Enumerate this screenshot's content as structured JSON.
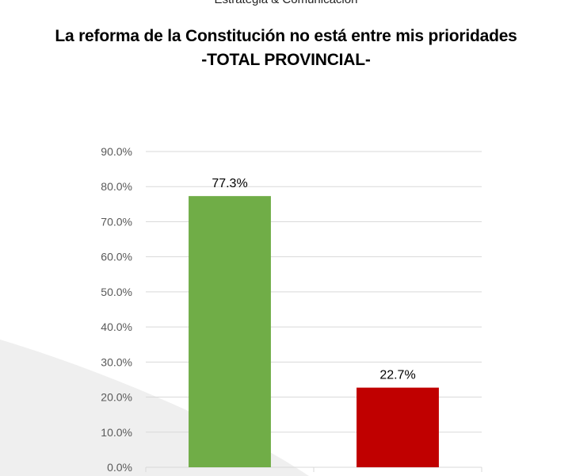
{
  "header": {
    "org_line": "Estrategia & Comunicación",
    "title": "La reforma de la Constitución no está entre mis prioridades",
    "subtitle": "-TOTAL PROVINCIAL-"
  },
  "colors": {
    "background": "#ffffff",
    "gridline": "#d9d9d9",
    "tick_text": "#595959",
    "bg_shape": "#efefef"
  },
  "chart_data": {
    "type": "bar",
    "categories": [
      "",
      ""
    ],
    "values": [
      77.3,
      22.7
    ],
    "data_labels": [
      "77.3%",
      "22.7%"
    ],
    "bar_colors": [
      "#70ad47",
      "#c00000"
    ],
    "ylim": [
      0,
      90
    ],
    "yticks": [
      0,
      10,
      20,
      30,
      40,
      50,
      60,
      70,
      80,
      90
    ],
    "ytick_labels": [
      "0.0%",
      "10.0%",
      "20.0%",
      "30.0%",
      "40.0%",
      "50.0%",
      "60.0%",
      "70.0%",
      "80.0%",
      "90.0%"
    ],
    "xlabel": "",
    "ylabel": "",
    "grid": true,
    "legend": "none"
  }
}
